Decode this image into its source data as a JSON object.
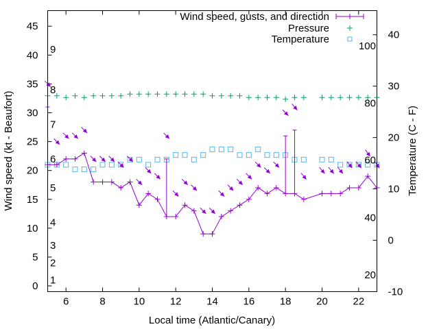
{
  "chart_data": {
    "type": "line",
    "xlabel": "Local time (Atlantic/Canary)",
    "ylabel": "Wind speed (kt - Beaufort)",
    "y2label": "Temperature (C - F)",
    "xlim": [
      5,
      23
    ],
    "ylim": [
      -1,
      47.7
    ],
    "y2lim": [
      -10,
      44.7
    ],
    "pressure_lim": [
      902,
      1067
    ],
    "grid": false,
    "legend_position": "top-right",
    "x_ticks": [
      "6",
      "8",
      "10",
      "12",
      "14",
      "16",
      "18",
      "20",
      "22"
    ],
    "y_ticks": [
      "0",
      "5",
      "10",
      "15",
      "20",
      "25",
      "30",
      "35",
      "40",
      "45"
    ],
    "y2_ticks": [
      "-10",
      "0",
      "10",
      "20",
      "30",
      "40"
    ],
    "beaufort_labels": [
      {
        "label": "1",
        "kt": 1
      },
      {
        "label": "2",
        "kt": 4
      },
      {
        "label": "3",
        "kt": 7
      },
      {
        "label": "4",
        "kt": 11
      },
      {
        "label": "5",
        "kt": 17
      },
      {
        "label": "6",
        "kt": 22
      },
      {
        "label": "7",
        "kt": 28
      },
      {
        "label": "8",
        "kt": 34
      },
      {
        "label": "9",
        "kt": 41
      }
    ],
    "fahrenheit_labels": [
      {
        "label": "100",
        "c": 37.8
      },
      {
        "label": "80",
        "c": 26.7
      },
      {
        "label": "60",
        "c": 15.6
      },
      {
        "label": "40",
        "c": 4.4
      },
      {
        "label": "20",
        "c": -6.7
      }
    ],
    "x": [
      5,
      5.5,
      6,
      6.5,
      7,
      7.5,
      8,
      8.5,
      9,
      9.5,
      10,
      10.5,
      11,
      11.5,
      12,
      12.5,
      13,
      13.5,
      14,
      14.5,
      15,
      15.5,
      16,
      16.5,
      17,
      17.5,
      18,
      18.5,
      19,
      20,
      20.5,
      21,
      21.5,
      22,
      22.5,
      23
    ],
    "series": [
      {
        "name": "Wind speed, gusts, and direction",
        "color": "#9400d3",
        "values": [
          21,
          21,
          22,
          22,
          23,
          18,
          18,
          18,
          17,
          18,
          14,
          16,
          15,
          12,
          12,
          14,
          13,
          9,
          9,
          12,
          13,
          14,
          15,
          17,
          16,
          17,
          16,
          16,
          15,
          16,
          16,
          16,
          17,
          17,
          19,
          17
        ],
        "gusts": [
          31,
          null,
          null,
          null,
          null,
          null,
          null,
          null,
          null,
          null,
          null,
          null,
          null,
          22,
          null,
          null,
          null,
          null,
          null,
          null,
          null,
          null,
          null,
          null,
          null,
          null,
          26,
          27,
          null,
          null,
          null,
          null,
          null,
          null,
          null,
          null
        ],
        "direction_deg": [
          315,
          315,
          315,
          315,
          315,
          315,
          315,
          315,
          315,
          315,
          315,
          315,
          315,
          315,
          315,
          315,
          315,
          315,
          315,
          315,
          315,
          315,
          315,
          315,
          315,
          315,
          315,
          320,
          320,
          320,
          320,
          320,
          320,
          320,
          325,
          325
        ]
      },
      {
        "name": "Pressure",
        "color": "#009e73",
        "values": [
          1017,
          1017,
          1016,
          1017,
          1016,
          1017,
          1017,
          1017,
          1017,
          1018,
          1018,
          1018,
          1018,
          1018,
          1018,
          1018,
          1018,
          1018,
          1017,
          1017,
          1017,
          1017,
          1016,
          1016,
          1016,
          1016,
          1015,
          1016,
          1016,
          1016,
          1016,
          1016,
          1016,
          1016,
          1016,
          1016
        ]
      },
      {
        "name": "Temperature",
        "color": "#56b4e9",
        "values": [
          14.7,
          14.7,
          14.7,
          13.8,
          13.8,
          13.8,
          14.7,
          14.7,
          14.7,
          15.7,
          15.7,
          14.7,
          15.7,
          15.7,
          16.6,
          16.6,
          15.7,
          16.6,
          17.7,
          17.7,
          17.7,
          16.6,
          16.6,
          17.7,
          16.6,
          16.6,
          16.6,
          15.7,
          15.7,
          15.7,
          15.7,
          14.7,
          14.7,
          14.7,
          14.7,
          14.7
        ]
      }
    ]
  }
}
